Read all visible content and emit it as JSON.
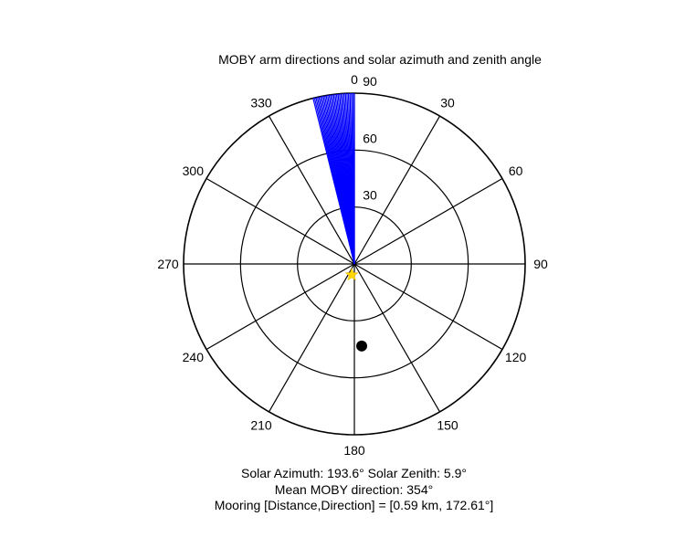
{
  "chart_data": {
    "type": "polar",
    "title": "MOBY arm directions and solar azimuth and zenith angle",
    "angle_ticks": [
      "0",
      "30",
      "60",
      "90",
      "120",
      "150",
      "180",
      "210",
      "240",
      "270",
      "300",
      "330"
    ],
    "radial_ticks": [
      "30",
      "60",
      "90"
    ],
    "radial_max": 90,
    "angle_direction": "clockwise",
    "angle_zero": "top",
    "colors": {
      "arm_lines": "#0000ff",
      "sun_marker": "#ffd700",
      "mooring_marker": "#000000"
    },
    "arm_directions_deg": [
      346,
      346.5,
      347,
      347.5,
      348,
      348.5,
      349,
      349.5,
      350,
      350.5,
      351,
      351.5,
      352,
      352.5,
      353,
      353.5,
      354,
      354.5,
      355,
      355.5,
      356,
      356.5,
      357,
      357.5,
      358,
      358.5,
      359,
      359.5,
      360
    ],
    "arm_length": 90,
    "sun": {
      "azimuth": 193.6,
      "zenith": 5.9
    },
    "mooring": {
      "direction": 172.61,
      "radius": 30
    }
  },
  "captions": {
    "solar": "Solar Azimuth: 193.6°   Solar Zenith: 5.9°",
    "mean": "Mean MOBY direction: 354°",
    "mooring": "Mooring [Distance,Direction] = [0.59 km, 172.61°]"
  }
}
